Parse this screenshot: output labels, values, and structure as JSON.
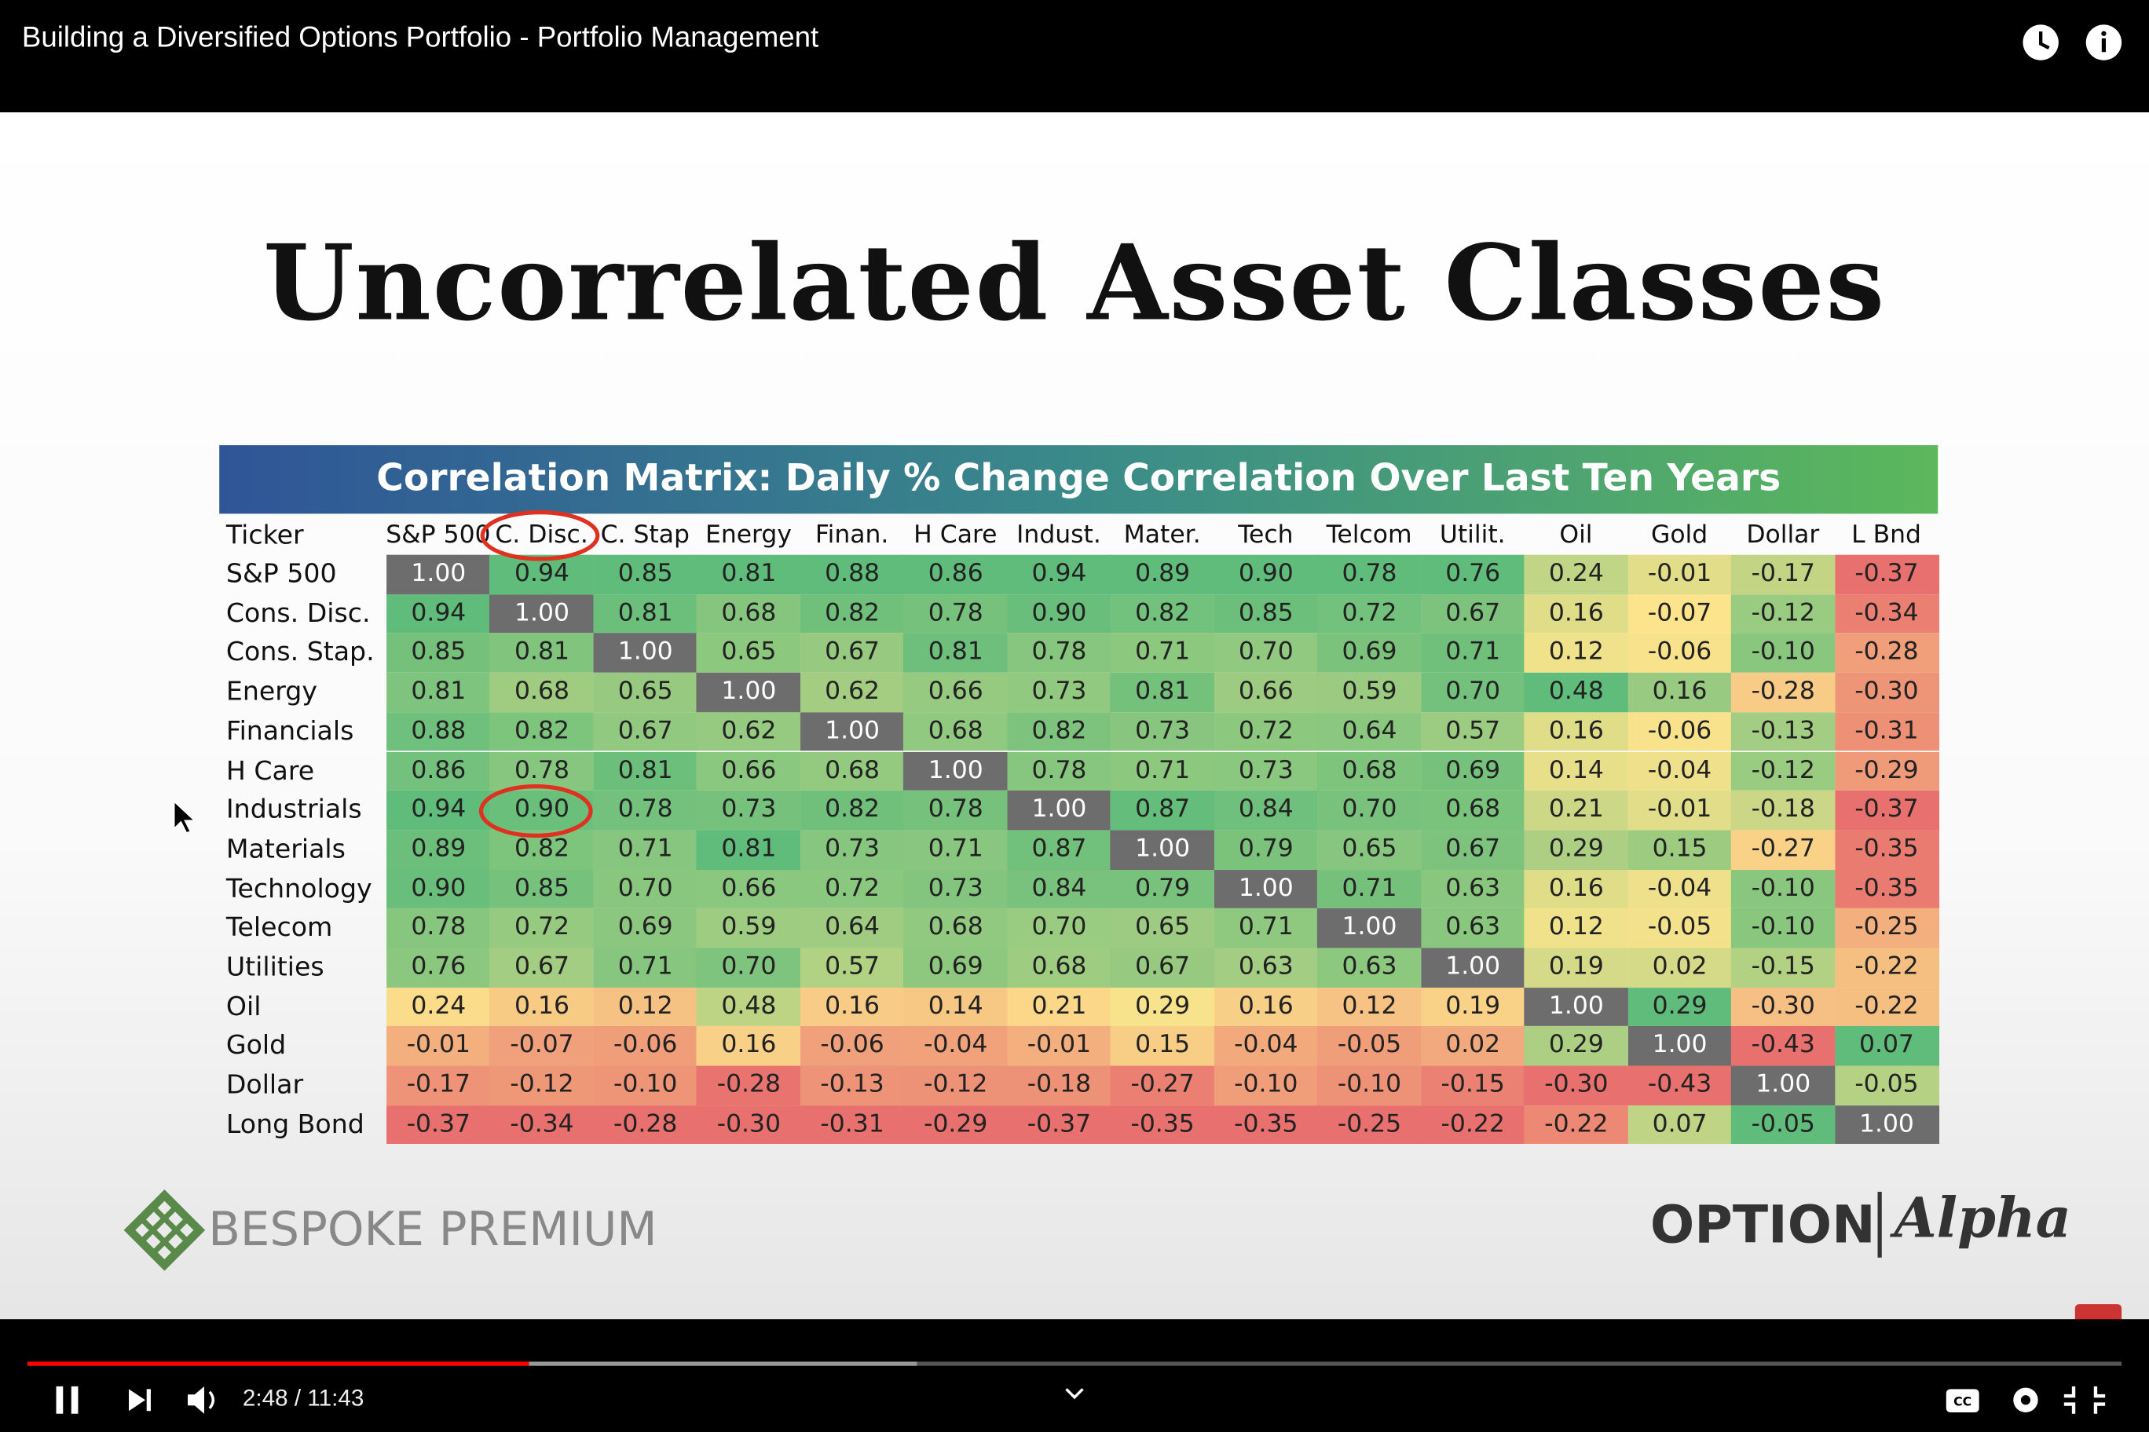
{
  "video_title": "Building a Diversified Options Portfolio - Portfolio Management",
  "slide": {
    "title": "Uncorrelated Asset Classes",
    "table": {
      "caption": "Correlation Matrix: Daily % Change Correlation Over Last Ten Years",
      "corner": "Ticker",
      "columns": [
        "S&P 500",
        "C. Disc.",
        "C. Stap",
        "Energy",
        "Finan.",
        "H Care",
        "Indust.",
        "Mater.",
        "Tech",
        "Telcom",
        "Utilit.",
        "Oil",
        "Gold",
        "Dollar",
        "L Bnd"
      ],
      "rows": [
        {
          "label": "S&P 500",
          "values": [
            "1.00",
            "0.94",
            "0.85",
            "0.81",
            "0.88",
            "0.86",
            "0.94",
            "0.89",
            "0.90",
            "0.78",
            "0.76",
            "0.24",
            "-0.01",
            "-0.17",
            "-0.37"
          ]
        },
        {
          "label": "Cons. Disc.",
          "values": [
            "0.94",
            "1.00",
            "0.81",
            "0.68",
            "0.82",
            "0.78",
            "0.90",
            "0.82",
            "0.85",
            "0.72",
            "0.67",
            "0.16",
            "-0.07",
            "-0.12",
            "-0.34"
          ]
        },
        {
          "label": "Cons. Stap.",
          "values": [
            "0.85",
            "0.81",
            "1.00",
            "0.65",
            "0.67",
            "0.81",
            "0.78",
            "0.71",
            "0.70",
            "0.69",
            "0.71",
            "0.12",
            "-0.06",
            "-0.10",
            "-0.28"
          ]
        },
        {
          "label": "Energy",
          "values": [
            "0.81",
            "0.68",
            "0.65",
            "1.00",
            "0.62",
            "0.66",
            "0.73",
            "0.81",
            "0.66",
            "0.59",
            "0.70",
            "0.48",
            "0.16",
            "-0.28",
            "-0.30"
          ]
        },
        {
          "label": "Financials",
          "values": [
            "0.88",
            "0.82",
            "0.67",
            "0.62",
            "1.00",
            "0.68",
            "0.82",
            "0.73",
            "0.72",
            "0.64",
            "0.57",
            "0.16",
            "-0.06",
            "-0.13",
            "-0.31"
          ]
        },
        {
          "label": "H Care",
          "values": [
            "0.86",
            "0.78",
            "0.81",
            "0.66",
            "0.68",
            "1.00",
            "0.78",
            "0.71",
            "0.73",
            "0.68",
            "0.69",
            "0.14",
            "-0.04",
            "-0.12",
            "-0.29"
          ]
        },
        {
          "label": "Industrials",
          "values": [
            "0.94",
            "0.90",
            "0.78",
            "0.73",
            "0.82",
            "0.78",
            "1.00",
            "0.87",
            "0.84",
            "0.70",
            "0.68",
            "0.21",
            "-0.01",
            "-0.18",
            "-0.37"
          ]
        },
        {
          "label": "Materials",
          "values": [
            "0.89",
            "0.82",
            "0.71",
            "0.81",
            "0.73",
            "0.71",
            "0.87",
            "1.00",
            "0.79",
            "0.65",
            "0.67",
            "0.29",
            "0.15",
            "-0.27",
            "-0.35"
          ]
        },
        {
          "label": "Technology",
          "values": [
            "0.90",
            "0.85",
            "0.70",
            "0.66",
            "0.72",
            "0.73",
            "0.84",
            "0.79",
            "1.00",
            "0.71",
            "0.63",
            "0.16",
            "-0.04",
            "-0.10",
            "-0.35"
          ]
        },
        {
          "label": "Telecom",
          "values": [
            "0.78",
            "0.72",
            "0.69",
            "0.59",
            "0.64",
            "0.68",
            "0.70",
            "0.65",
            "0.71",
            "1.00",
            "0.63",
            "0.12",
            "-0.05",
            "-0.10",
            "-0.25"
          ]
        },
        {
          "label": "Utilities",
          "values": [
            "0.76",
            "0.67",
            "0.71",
            "0.70",
            "0.57",
            "0.69",
            "0.68",
            "0.67",
            "0.63",
            "0.63",
            "1.00",
            "0.19",
            "0.02",
            "-0.15",
            "-0.22"
          ]
        },
        {
          "label": "Oil",
          "values": [
            "0.24",
            "0.16",
            "0.12",
            "0.48",
            "0.16",
            "0.14",
            "0.21",
            "0.29",
            "0.16",
            "0.12",
            "0.19",
            "1.00",
            "0.29",
            "-0.30",
            "-0.22"
          ]
        },
        {
          "label": "Gold",
          "values": [
            "-0.01",
            "-0.07",
            "-0.06",
            "0.16",
            "-0.06",
            "-0.04",
            "-0.01",
            "0.15",
            "-0.04",
            "-0.05",
            "0.02",
            "0.29",
            "1.00",
            "-0.43",
            "0.07"
          ]
        },
        {
          "label": "Dollar",
          "values": [
            "-0.17",
            "-0.12",
            "-0.10",
            "-0.28",
            "-0.13",
            "-0.12",
            "-0.18",
            "-0.27",
            "-0.10",
            "-0.10",
            "-0.15",
            "-0.30",
            "-0.43",
            "1.00",
            "-0.05"
          ]
        },
        {
          "label": "Long Bond",
          "values": [
            "-0.37",
            "-0.34",
            "-0.28",
            "-0.30",
            "-0.31",
            "-0.29",
            "-0.37",
            "-0.35",
            "-0.35",
            "-0.25",
            "-0.22",
            "-0.22",
            "0.07",
            "-0.05",
            "1.00"
          ]
        }
      ]
    },
    "logo_left": "BESPOKE PREMIUM",
    "logo_right": "OPTION",
    "logo_right_script": "Alpha"
  },
  "player": {
    "time": "2:48 / 11:43"
  }
}
